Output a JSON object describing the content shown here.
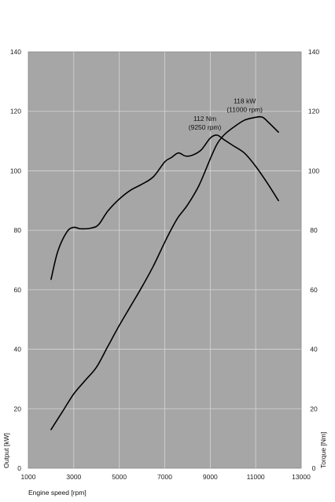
{
  "chart_data": {
    "type": "line",
    "xlabel": "Engine speed [rpm]",
    "ylabel_left": "Output [kW]",
    "ylabel_right": "Torque [Nm]",
    "xlim": [
      1000,
      13000
    ],
    "ylim_left": [
      0,
      140
    ],
    "ylim_right": [
      0,
      140
    ],
    "x_ticks": [
      1000,
      3000,
      5000,
      7000,
      9000,
      11000,
      13000
    ],
    "y_ticks_left": [
      0,
      20,
      40,
      60,
      80,
      100,
      120,
      140
    ],
    "y_ticks_right": [
      0,
      20,
      40,
      60,
      80,
      100,
      120,
      140
    ],
    "grid": true,
    "plot_background": "#a6a6a6",
    "line_color": "#000000",
    "series": [
      {
        "axis": "left",
        "x": [
          2000,
          2500,
          3000,
          3500,
          4000,
          4500,
          5000,
          5500,
          6000,
          6500,
          7000,
          7300,
          7600,
          8000,
          8500,
          9000,
          9300,
          9600,
          10000,
          10500,
          11000,
          11300,
          11600,
          12000
        ],
        "y": [
          13,
          19,
          25,
          29.5,
          34,
          41,
          48,
          54.5,
          61,
          68,
          76,
          80.5,
          84.5,
          88.5,
          95,
          104,
          109,
          112,
          114.5,
          117,
          118,
          118,
          116,
          113
        ]
      },
      {
        "axis": "right",
        "x": [
          2000,
          2300,
          2700,
          3000,
          3300,
          3800,
          4100,
          4500,
          5000,
          5500,
          6000,
          6500,
          7000,
          7300,
          7600,
          7900,
          8200,
          8600,
          9000,
          9300,
          9600,
          10000,
          10500,
          11000,
          11500,
          12000
        ],
        "y": [
          63.5,
          73,
          79.5,
          81,
          80.5,
          80.8,
          82,
          86.5,
          90.5,
          93.5,
          95.5,
          98,
          103,
          104.5,
          106,
          105,
          105.2,
          107,
          111,
          112,
          110.5,
          108.5,
          106,
          101.5,
          96,
          90
        ]
      }
    ],
    "annotations": [
      {
        "line1": "118 kW",
        "line2": "(11000 rpm)",
        "x": 11000,
        "y": 118
      },
      {
        "line1": "112 Nm",
        "line2": "(9250 rpm)",
        "x": 9250,
        "y": 112
      }
    ]
  }
}
